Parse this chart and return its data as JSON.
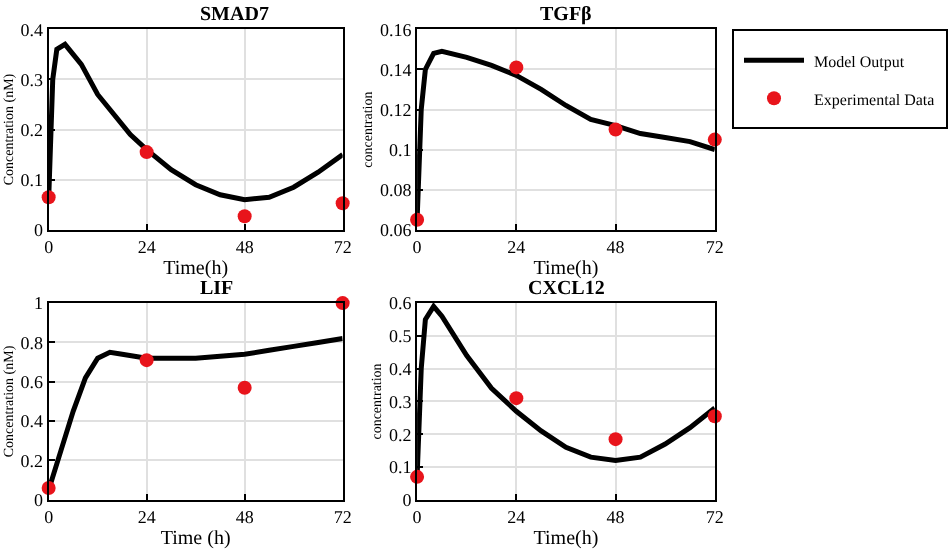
{
  "chart_data": [
    {
      "type": "line",
      "title": "SMAD7",
      "xlabel": "Time(h)",
      "ylabel": "Concentration (nM)",
      "xlim": [
        0,
        72
      ],
      "xticks": [
        0,
        24,
        48,
        72
      ],
      "ylim": [
        0,
        0.4
      ],
      "yticks": [
        0,
        0.1,
        0.2,
        0.3,
        0.4
      ],
      "grid": true,
      "legend": false,
      "series": [
        {
          "color": "#000000",
          "marker": "none",
          "x": [
            0,
            1,
            2,
            4,
            8,
            12,
            16,
            20,
            24,
            30,
            36,
            42,
            48,
            54,
            60,
            66,
            72
          ],
          "values": [
            0.06,
            0.3,
            0.36,
            0.37,
            0.33,
            0.27,
            0.23,
            0.19,
            0.16,
            0.12,
            0.09,
            0.07,
            0.06,
            0.065,
            0.085,
            0.115,
            0.15
          ]
        },
        {
          "type": "scatter",
          "color": "#e8141b",
          "marker": "circle",
          "x": [
            0,
            24,
            48,
            72
          ],
          "values": [
            0.065,
            0.155,
            0.027,
            0.053
          ]
        }
      ]
    },
    {
      "type": "line",
      "title": "TGFβ",
      "xlabel": "Time(h)",
      "ylabel": "concentration",
      "xlim": [
        0,
        72
      ],
      "xticks": [
        0,
        24,
        48,
        72
      ],
      "ylim": [
        0.06,
        0.16
      ],
      "yticks": [
        0.06,
        0.08,
        0.1,
        0.12,
        0.14,
        0.16
      ],
      "grid": true,
      "legend": "right",
      "series": [
        {
          "name": "Model Output",
          "color": "#000000",
          "marker": "none",
          "x": [
            0,
            1,
            2,
            4,
            6,
            12,
            18,
            24,
            30,
            36,
            42,
            48,
            54,
            60,
            66,
            72
          ],
          "values": [
            0.065,
            0.12,
            0.14,
            0.148,
            0.149,
            0.146,
            0.142,
            0.137,
            0.13,
            0.122,
            0.115,
            0.112,
            0.108,
            0.106,
            0.104,
            0.1
          ]
        },
        {
          "type": "scatter",
          "name": "Experimental Data",
          "color": "#e8141b",
          "marker": "circle",
          "x": [
            0,
            24,
            48,
            72
          ],
          "values": [
            0.065,
            0.141,
            0.11,
            0.105
          ]
        }
      ]
    },
    {
      "type": "line",
      "title": "LIF",
      "xlabel": "Time (h)",
      "ylabel": "Concentration (nM)",
      "xlim": [
        0,
        72
      ],
      "xticks": [
        0,
        24,
        48,
        72
      ],
      "ylim": [
        0,
        1
      ],
      "yticks": [
        0,
        0.2,
        0.4,
        0.6,
        0.8,
        1
      ],
      "grid": true,
      "legend": false,
      "series": [
        {
          "color": "#000000",
          "marker": "none",
          "x": [
            0,
            3,
            6,
            9,
            12,
            15,
            18,
            24,
            30,
            36,
            42,
            48,
            54,
            60,
            66,
            72
          ],
          "values": [
            0.05,
            0.25,
            0.45,
            0.62,
            0.72,
            0.75,
            0.74,
            0.72,
            0.72,
            0.72,
            0.73,
            0.74,
            0.76,
            0.78,
            0.8,
            0.82
          ]
        },
        {
          "type": "scatter",
          "color": "#e8141b",
          "marker": "circle",
          "x": [
            0,
            24,
            48,
            72
          ],
          "values": [
            0.06,
            0.71,
            0.57,
            1.0
          ]
        }
      ]
    },
    {
      "type": "line",
      "title": "CXCL12",
      "xlabel": "Time(h)",
      "ylabel": "concentration",
      "xlim": [
        0,
        72
      ],
      "xticks": [
        0,
        24,
        48,
        72
      ],
      "ylim": [
        0,
        0.6
      ],
      "yticks": [
        0,
        0.1,
        0.2,
        0.3,
        0.4,
        0.5,
        0.6
      ],
      "grid": true,
      "legend": false,
      "series": [
        {
          "color": "#000000",
          "marker": "none",
          "x": [
            0,
            1,
            2,
            4,
            6,
            12,
            18,
            24,
            30,
            36,
            42,
            48,
            54,
            60,
            66,
            72
          ],
          "values": [
            0.07,
            0.4,
            0.55,
            0.59,
            0.56,
            0.44,
            0.34,
            0.27,
            0.21,
            0.16,
            0.13,
            0.12,
            0.13,
            0.17,
            0.22,
            0.28
          ]
        },
        {
          "type": "scatter",
          "color": "#e8141b",
          "marker": "circle",
          "x": [
            0,
            24,
            48,
            72
          ],
          "values": [
            0.07,
            0.31,
            0.185,
            0.255
          ]
        }
      ]
    }
  ]
}
